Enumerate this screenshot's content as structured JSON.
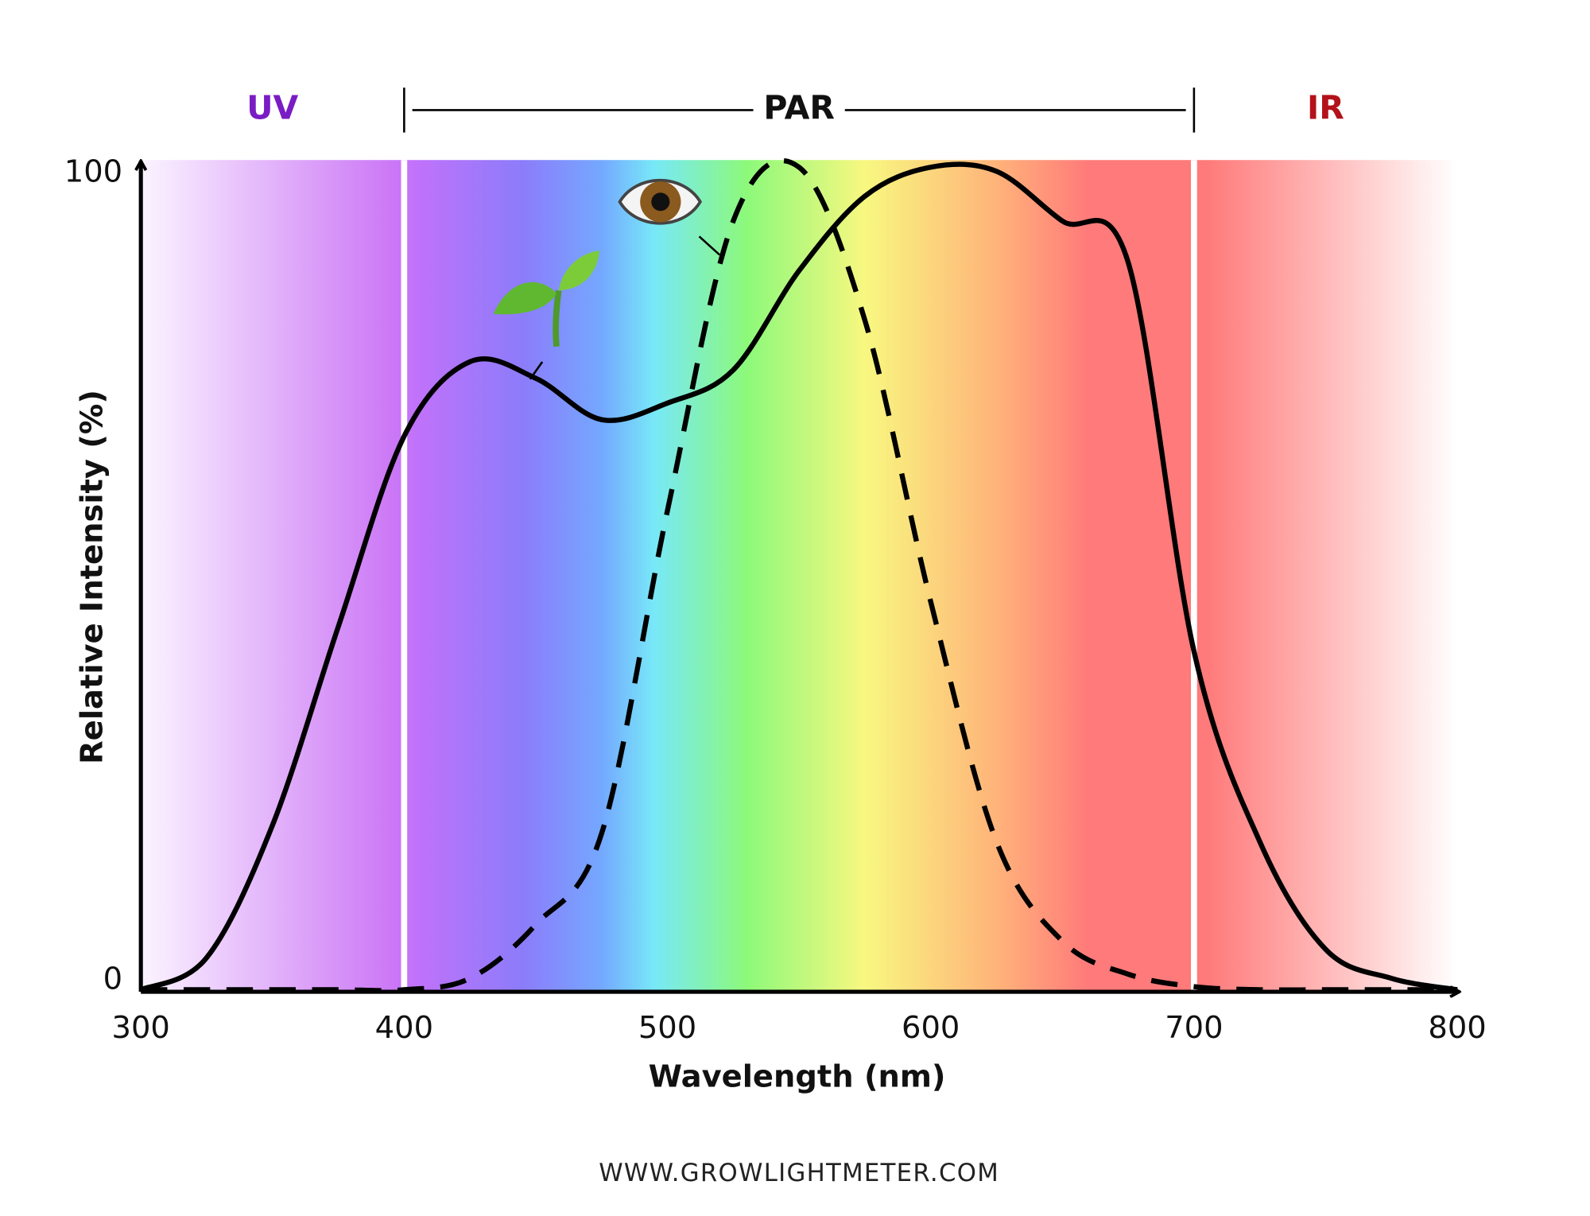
{
  "chart_data": {
    "type": "line",
    "x_label": "Wavelength (nm)",
    "y_label": "Relative Intensity (%)",
    "x": [
      300,
      325,
      350,
      375,
      400,
      425,
      450,
      475,
      500,
      525,
      550,
      575,
      600,
      625,
      650,
      675,
      700,
      725,
      750,
      775,
      800
    ],
    "series": [
      {
        "color": "#000000",
        "dash": false,
        "values": [
          0,
          4,
          20,
          44,
          67,
          76,
          74,
          69,
          71,
          75,
          87,
          96,
          99.5,
          99,
          93,
          88,
          41,
          18,
          5,
          1.5,
          0
        ]
      },
      {
        "color": "#000000",
        "dash": true,
        "values": [
          0,
          0,
          0,
          0,
          0,
          1.5,
          8,
          19,
          58,
          93,
          99.5,
          81,
          47,
          18,
          6,
          2,
          0.5,
          0,
          0,
          0,
          0
        ]
      }
    ],
    "xlim": [
      300,
      800
    ],
    "ylim": [
      0,
      100
    ],
    "xticks": [
      300,
      400,
      500,
      600,
      700,
      800
    ],
    "yticks": [
      0,
      100
    ],
    "regions": [
      {
        "label": "UV",
        "start": 300,
        "end": 400,
        "color": "#7a1cc4"
      },
      {
        "label": "PAR",
        "start": 400,
        "end": 700,
        "color": "#111111"
      },
      {
        "label": "IR",
        "start": 700,
        "end": 800,
        "color": "#b3121b"
      }
    ],
    "footer": "WWW.GROWLIGHTMETER.COM"
  }
}
